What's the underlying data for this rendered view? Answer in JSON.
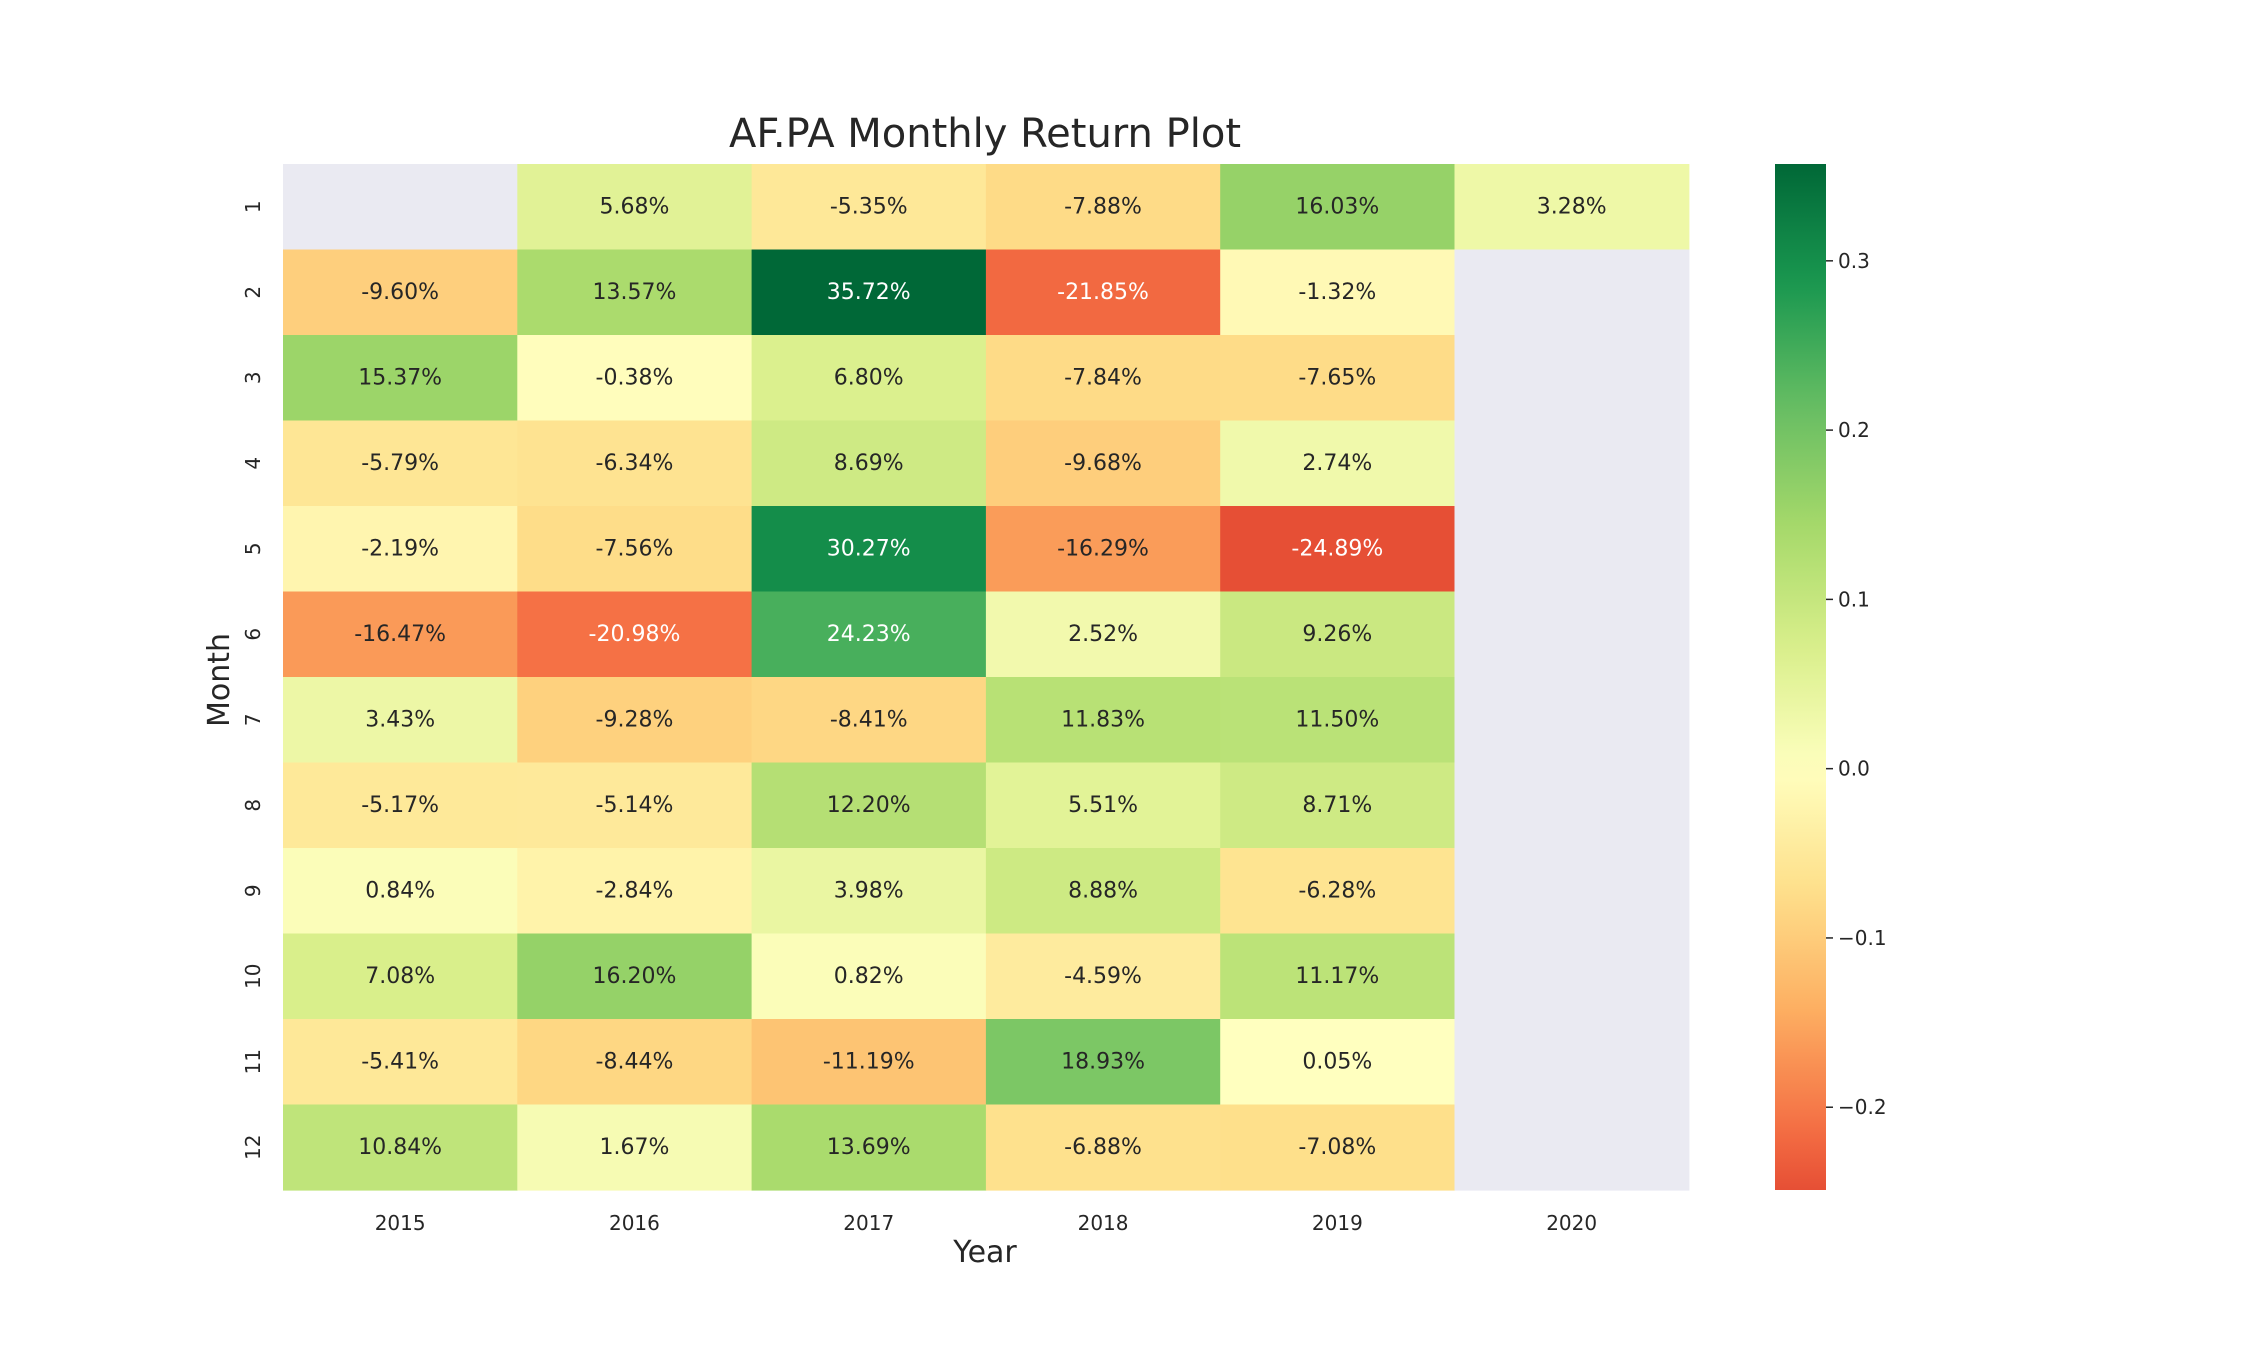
{
  "chart_data": {
    "type": "heatmap",
    "title": "AF.PA Monthly Return Plot",
    "xlabel": "Year",
    "ylabel": "Month",
    "x_categories": [
      "2015",
      "2016",
      "2017",
      "2018",
      "2019",
      "2020"
    ],
    "y_categories": [
      "1",
      "2",
      "3",
      "4",
      "5",
      "6",
      "7",
      "8",
      "9",
      "10",
      "11",
      "12"
    ],
    "values": [
      [
        null,
        0.0568,
        -0.0535,
        -0.0788,
        0.1603,
        0.0328
      ],
      [
        -0.096,
        0.1357,
        0.3572,
        -0.2185,
        -0.0132,
        null
      ],
      [
        0.1537,
        -0.0038,
        0.068,
        -0.0784,
        -0.0765,
        null
      ],
      [
        -0.0579,
        -0.0634,
        0.0869,
        -0.0968,
        0.0274,
        null
      ],
      [
        -0.0219,
        -0.0756,
        0.3027,
        -0.1629,
        -0.2489,
        null
      ],
      [
        -0.1647,
        -0.2098,
        0.2423,
        0.0252,
        0.0926,
        null
      ],
      [
        0.0343,
        -0.0928,
        -0.0841,
        0.1183,
        0.115,
        null
      ],
      [
        -0.0517,
        -0.0514,
        0.122,
        0.0551,
        0.0871,
        null
      ],
      [
        0.0084,
        -0.0284,
        0.0398,
        0.0888,
        -0.0628,
        null
      ],
      [
        0.0708,
        0.162,
        0.0082,
        -0.0459,
        0.1117,
        null
      ],
      [
        -0.0541,
        -0.0844,
        -0.1119,
        0.1893,
        0.0005,
        null
      ],
      [
        0.1084,
        0.0167,
        0.1369,
        -0.0688,
        -0.0708,
        null
      ]
    ],
    "labels": [
      [
        "",
        "5.68%",
        "-5.35%",
        "-7.88%",
        "16.03%",
        "3.28%"
      ],
      [
        "-9.60%",
        "13.57%",
        "35.72%",
        "-21.85%",
        "-1.32%",
        ""
      ],
      [
        "15.37%",
        "-0.38%",
        "6.80%",
        "-7.84%",
        "-7.65%",
        ""
      ],
      [
        "-5.79%",
        "-6.34%",
        "8.69%",
        "-9.68%",
        "2.74%",
        ""
      ],
      [
        "-2.19%",
        "-7.56%",
        "30.27%",
        "-16.29%",
        "-24.89%",
        ""
      ],
      [
        "-16.47%",
        "-20.98%",
        "24.23%",
        "2.52%",
        "9.26%",
        ""
      ],
      [
        "3.43%",
        "-9.28%",
        "-8.41%",
        "11.83%",
        "11.50%",
        ""
      ],
      [
        "-5.17%",
        "-5.14%",
        "12.20%",
        "5.51%",
        "8.71%",
        ""
      ],
      [
        "0.84%",
        "-2.84%",
        "3.98%",
        "8.88%",
        "-6.28%",
        ""
      ],
      [
        "7.08%",
        "16.20%",
        "0.82%",
        "-4.59%",
        "11.17%",
        ""
      ],
      [
        "-5.41%",
        "-8.44%",
        "-11.19%",
        "18.93%",
        "0.05%",
        ""
      ],
      [
        "10.84%",
        "1.67%",
        "13.69%",
        "-6.88%",
        "-7.08%",
        ""
      ]
    ],
    "colormap": "RdYlGn",
    "vmin": -0.2489,
    "vmax": 0.3572,
    "colorbar_ticks": [
      -0.2,
      -0.1,
      0.0,
      0.1,
      0.2,
      0.3
    ],
    "colorbar_tick_labels": [
      "−0.2",
      "−0.1",
      "0.0",
      "0.1",
      "0.2",
      "0.3"
    ],
    "missing_color": "#eaeaf2"
  }
}
